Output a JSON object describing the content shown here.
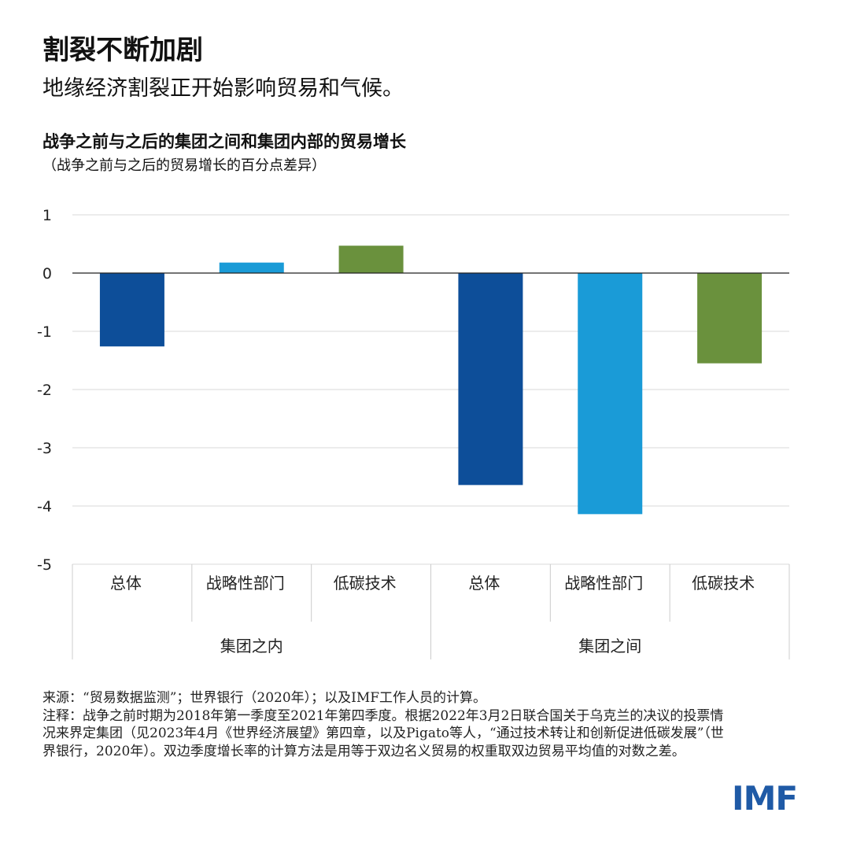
{
  "header": {
    "title": "割裂不断加剧",
    "subtitle": "地缘经济割裂正开始影响贸易和气候。"
  },
  "chart_data": {
    "type": "bar",
    "title": "战争之前与之后的集团之间和集团内部的贸易增长",
    "ylabel": "（战争之前与之后的贸易增长的百分点差异）",
    "ylim": [
      -5,
      1
    ],
    "yticks": [
      1,
      0,
      -1,
      -2,
      -3,
      -4,
      -5
    ],
    "grid": true,
    "groups": [
      {
        "label": "集团之内",
        "categories": [
          "总体",
          "战略性部门",
          "低碳技术"
        ],
        "values": [
          -1.26,
          0.18,
          0.47
        ]
      },
      {
        "label": "集团之间",
        "categories": [
          "总体",
          "战略性部门",
          "低碳技术"
        ],
        "values": [
          -3.64,
          -4.14,
          -1.55
        ]
      }
    ],
    "colors": [
      "#0d4e99",
      "#1a9bd7",
      "#6a913d"
    ]
  },
  "notes": {
    "source": "来源：“贸易数据监测”；世界银行（2020年）；以及IMF工作人员的计算。",
    "note": "注释：战争之前时期为2018年第一季度至2021年第四季度。根据2022年3月2日联合国关于乌克兰的决议的投票情况来界定集团（见2023年4月《世界经济展望》第四章，以及Pigato等人，“通过技术转让和创新促进低碳发展”（世界银行，2020年）。双边季度增长率的计算方法是用等于双边名义贸易的权重取双边贸易平均值的对数之差。"
  },
  "logo": "IMF"
}
